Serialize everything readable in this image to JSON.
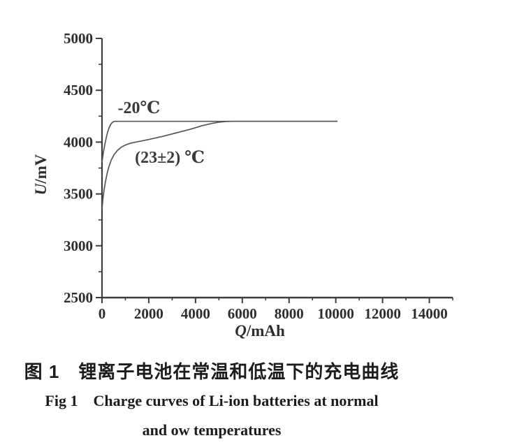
{
  "figure": {
    "caption_zh": "图 1　锂离子电池在常温和低温下的充电曲线",
    "caption_en_line1": "Fig 1    Charge curves of Li-ion batteries at normal",
    "caption_en_line2": "and ow temperatures"
  },
  "colors": {
    "background": "#ffffff",
    "axis": "#3d3d3d",
    "curve": "#555555",
    "tick_label": "#2e2e2e",
    "annotation": "#3a3a3a",
    "caption": "#1c1c1c"
  },
  "chart_data": {
    "type": "line",
    "title": "",
    "xlabel": {
      "italic": "Q",
      "rest": "/mAh"
    },
    "ylabel": {
      "italic": "U",
      "rest": "/mV"
    },
    "xlim": [
      0,
      15000
    ],
    "ylim": [
      2500,
      5000
    ],
    "grid": false,
    "legend_position": "none",
    "x_major_ticks": [
      0,
      2000,
      4000,
      6000,
      8000,
      10000,
      12000,
      14000
    ],
    "x_minor_ticks": [
      1000,
      3000,
      5000,
      7000,
      9000,
      11000,
      13000,
      15000
    ],
    "y_major_ticks": [
      2500,
      3000,
      3500,
      4000,
      4500,
      5000
    ],
    "y_minor_ticks": [
      2750,
      3250,
      3750,
      4250,
      4750
    ],
    "series": [
      {
        "name": "-20℃",
        "points": [
          [
            0,
            3810
          ],
          [
            60,
            3900
          ],
          [
            120,
            3975
          ],
          [
            180,
            4040
          ],
          [
            240,
            4095
          ],
          [
            300,
            4135
          ],
          [
            360,
            4165
          ],
          [
            420,
            4185
          ],
          [
            480,
            4196
          ],
          [
            540,
            4200
          ],
          [
            10050,
            4200
          ]
        ]
      },
      {
        "name": "(23±2) ℃",
        "points": [
          [
            0,
            3360
          ],
          [
            40,
            3450
          ],
          [
            90,
            3540
          ],
          [
            150,
            3620
          ],
          [
            220,
            3700
          ],
          [
            300,
            3765
          ],
          [
            400,
            3830
          ],
          [
            520,
            3880
          ],
          [
            660,
            3920
          ],
          [
            820,
            3950
          ],
          [
            1000,
            3972
          ],
          [
            1200,
            3988
          ],
          [
            1400,
            3998
          ],
          [
            2000,
            4025
          ],
          [
            2600,
            4055
          ],
          [
            3200,
            4090
          ],
          [
            3800,
            4125
          ],
          [
            4300,
            4160
          ],
          [
            4700,
            4180
          ],
          [
            5000,
            4192
          ],
          [
            5300,
            4199
          ],
          [
            5600,
            4200
          ],
          [
            10050,
            4200
          ]
        ]
      }
    ],
    "annotations": [
      {
        "text": "-20℃",
        "q": 1580,
        "u": 4280,
        "anchor": "middle",
        "font_size": 24
      },
      {
        "text": "(23±2) ℃",
        "q": 2900,
        "u": 3800,
        "anchor": "middle",
        "font_size": 24
      }
    ]
  }
}
